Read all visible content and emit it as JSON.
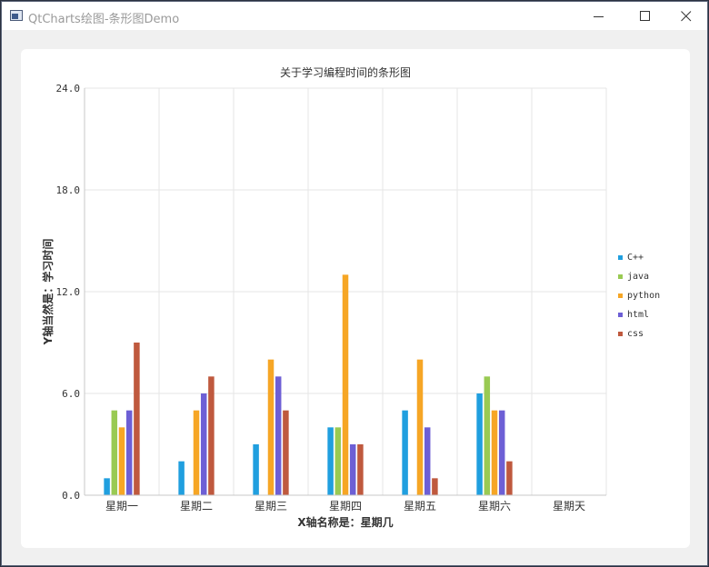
{
  "window": {
    "title": "QtCharts绘图-条形图Demo",
    "icons": {
      "app": "app-window-icon",
      "minimize": "minimize-icon",
      "maximize": "maximize-icon",
      "close": "close-icon"
    }
  },
  "chart_data": {
    "type": "bar",
    "title": "关于学习编程时间的条形图",
    "xlabel": "X轴名称是：星期几",
    "ylabel": "Y轴当然是：学习时间",
    "categories": [
      "星期一",
      "星期二",
      "星期三",
      "星期四",
      "星期五",
      "星期六",
      "星期天"
    ],
    "ylim": [
      0,
      24
    ],
    "yticks": [
      "0.0",
      "6.0",
      "12.0",
      "18.0",
      "24.0"
    ],
    "grid": true,
    "legend_position": "right",
    "series": [
      {
        "name": "C++",
        "color": "#209fdf",
        "values": [
          1,
          2,
          3,
          4,
          5,
          6,
          0
        ]
      },
      {
        "name": "java",
        "color": "#99ca53",
        "values": [
          5,
          0,
          0,
          4,
          0,
          7,
          0
        ]
      },
      {
        "name": "python",
        "color": "#f6a625",
        "values": [
          4,
          5,
          8,
          13,
          8,
          5,
          0
        ]
      },
      {
        "name": "html",
        "color": "#6d5fd5",
        "values": [
          5,
          6,
          7,
          3,
          4,
          5,
          0
        ]
      },
      {
        "name": "css",
        "color": "#bf593e",
        "values": [
          9,
          7,
          5,
          3,
          1,
          2,
          0
        ]
      }
    ]
  }
}
